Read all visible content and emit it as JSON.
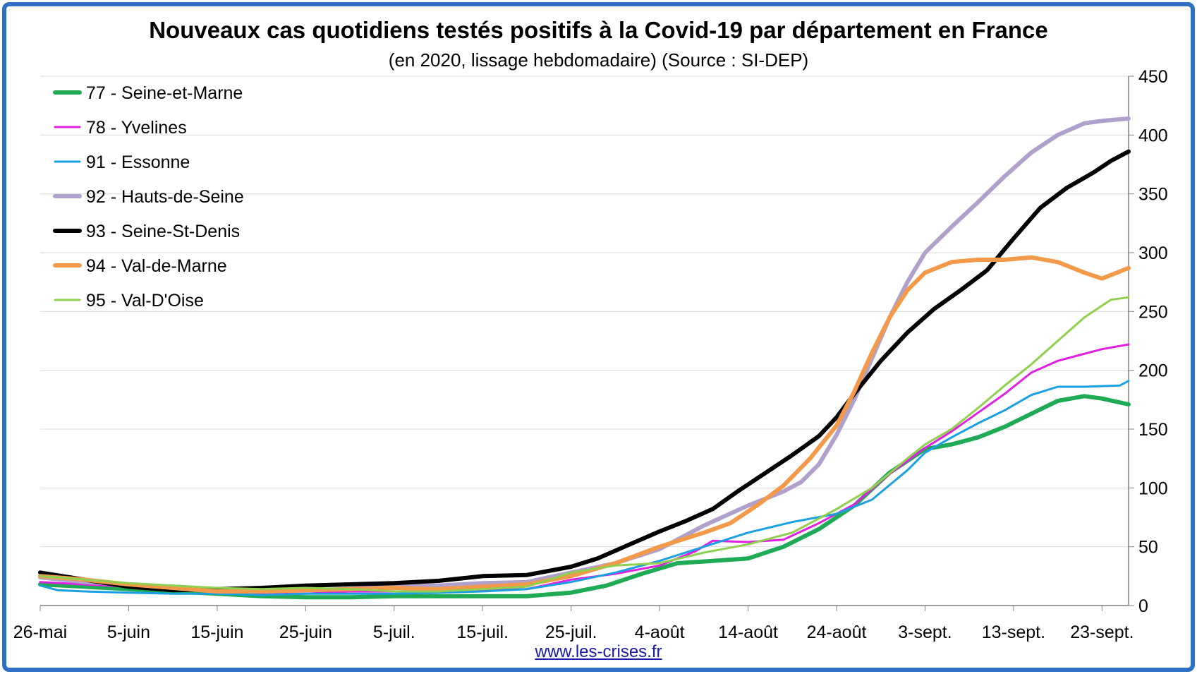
{
  "chart_data": {
    "type": "line",
    "title": "Nouveaux cas quotidiens testés positifs à la Covid-19 par département en France",
    "subtitle": "(en 2020, lissage hebdomadaire) (Source : SI-DEP)",
    "source_link": "www.les-crises.fr",
    "x_day_range": [
      0,
      123
    ],
    "x_ticks": [
      {
        "day": 0,
        "label": "26-mai"
      },
      {
        "day": 10,
        "label": "5-juin"
      },
      {
        "day": 20,
        "label": "15-juin"
      },
      {
        "day": 30,
        "label": "25-juin"
      },
      {
        "day": 40,
        "label": "5-juil."
      },
      {
        "day": 50,
        "label": "15-juil."
      },
      {
        "day": 60,
        "label": "25-juil."
      },
      {
        "day": 70,
        "label": "4-août"
      },
      {
        "day": 80,
        "label": "14-août"
      },
      {
        "day": 90,
        "label": "24-août"
      },
      {
        "day": 100,
        "label": "3-sept."
      },
      {
        "day": 110,
        "label": "13-sept."
      },
      {
        "day": 120,
        "label": "23-sept."
      }
    ],
    "y_axis": {
      "position": "right",
      "ylim": [
        0,
        450
      ],
      "ticks": [
        0,
        50,
        100,
        150,
        200,
        250,
        300,
        350,
        400,
        450
      ]
    },
    "grid": "horizontal",
    "legend_position": "top-left",
    "series": [
      {
        "name": "77 - Seine-et-Marne",
        "color": "#1faa55",
        "width": 6,
        "x": [
          0,
          5,
          10,
          15,
          20,
          25,
          30,
          35,
          40,
          45,
          50,
          55,
          60,
          64,
          68,
          72,
          76,
          80,
          84,
          88,
          92,
          96,
          100,
          103,
          106,
          109,
          112,
          115,
          118,
          120,
          123
        ],
        "values": [
          18,
          16,
          14,
          12,
          10,
          8,
          7,
          7,
          8,
          8,
          8,
          8,
          11,
          17,
          27,
          36,
          38,
          40,
          50,
          65,
          85,
          113,
          133,
          137,
          143,
          152,
          163,
          174,
          178,
          176,
          171
        ]
      },
      {
        "name": "78 - Yvelines",
        "color": "#e020e0",
        "width": 3,
        "x": [
          0,
          5,
          10,
          15,
          20,
          25,
          30,
          35,
          40,
          45,
          50,
          55,
          60,
          65,
          70,
          74,
          76,
          80,
          84,
          88,
          92,
          96,
          100,
          103,
          106,
          109,
          112,
          115,
          118,
          120,
          123
        ],
        "values": [
          20,
          18,
          16,
          14,
          12,
          10,
          10,
          12,
          12,
          12,
          13,
          14,
          22,
          27,
          34,
          46,
          55,
          54,
          56,
          70,
          86,
          112,
          134,
          148,
          164,
          180,
          198,
          208,
          214,
          218,
          222
        ]
      },
      {
        "name": "91 - Essonne",
        "color": "#1aa0e0",
        "width": 3,
        "x": [
          0,
          2,
          5,
          10,
          15,
          20,
          25,
          30,
          35,
          40,
          45,
          50,
          55,
          60,
          65,
          70,
          75,
          80,
          85,
          90,
          94,
          98,
          100,
          103,
          106,
          109,
          112,
          115,
          118,
          122,
          123
        ],
        "values": [
          17,
          13,
          12,
          11,
          10,
          10,
          9,
          10,
          10,
          10,
          11,
          12,
          14,
          20,
          28,
          38,
          50,
          62,
          71,
          78,
          90,
          115,
          130,
          143,
          155,
          166,
          179,
          186,
          186,
          187,
          191
        ]
      },
      {
        "name": "92 - Hauts-de-Seine",
        "color": "#b0a0cc",
        "width": 6,
        "x": [
          0,
          5,
          10,
          15,
          20,
          25,
          30,
          35,
          40,
          45,
          50,
          55,
          60,
          65,
          70,
          75,
          80,
          84,
          86,
          88,
          90,
          92,
          94,
          96,
          98,
          100,
          103,
          106,
          109,
          112,
          115,
          118,
          120,
          123
        ],
        "values": [
          24,
          20,
          18,
          16,
          14,
          12,
          13,
          14,
          16,
          17,
          19,
          20,
          28,
          36,
          48,
          68,
          85,
          97,
          105,
          120,
          145,
          175,
          210,
          245,
          275,
          300,
          322,
          343,
          365,
          385,
          400,
          410,
          412,
          414
        ]
      },
      {
        "name": "93 - Seine-St-Denis",
        "color": "#000000",
        "width": 6,
        "x": [
          0,
          5,
          10,
          15,
          20,
          25,
          30,
          35,
          40,
          45,
          50,
          55,
          60,
          63,
          66,
          70,
          73,
          76,
          79,
          82,
          85,
          88,
          90,
          92,
          95,
          98,
          101,
          104,
          107,
          110,
          113,
          116,
          119,
          121,
          123
        ],
        "values": [
          28,
          22,
          16,
          13,
          14,
          15,
          17,
          18,
          19,
          21,
          25,
          26,
          33,
          40,
          50,
          63,
          72,
          82,
          98,
          113,
          128,
          144,
          160,
          180,
          208,
          232,
          252,
          268,
          285,
          312,
          338,
          355,
          368,
          378,
          386
        ]
      },
      {
        "name": "94 - Val-de-Marne",
        "color": "#f39a4a",
        "width": 6,
        "x": [
          0,
          5,
          10,
          15,
          20,
          25,
          30,
          35,
          40,
          45,
          50,
          55,
          60,
          65,
          70,
          75,
          78,
          81,
          84,
          87,
          90,
          92,
          94,
          96,
          98,
          100,
          103,
          106,
          109,
          112,
          115,
          118,
          120,
          123
        ],
        "values": [
          25,
          22,
          18,
          15,
          12,
          12,
          13,
          14,
          15,
          14,
          16,
          18,
          25,
          36,
          50,
          62,
          70,
          85,
          102,
          125,
          153,
          182,
          215,
          245,
          268,
          283,
          292,
          294,
          294,
          296,
          292,
          283,
          278,
          287
        ]
      },
      {
        "name": "95 - Val-D'Oise",
        "color": "#90d050",
        "width": 3,
        "x": [
          0,
          5,
          10,
          15,
          20,
          25,
          30,
          35,
          40,
          45,
          50,
          55,
          60,
          65,
          70,
          75,
          80,
          85,
          90,
          94,
          98,
          100,
          103,
          106,
          109,
          112,
          115,
          118,
          120,
          121,
          123
        ],
        "values": [
          25,
          22,
          19,
          17,
          15,
          14,
          15,
          14,
          12,
          12,
          14,
          16,
          28,
          34,
          36,
          45,
          52,
          62,
          82,
          100,
          125,
          137,
          150,
          168,
          187,
          205,
          225,
          245,
          255,
          260,
          262
        ]
      }
    ]
  }
}
